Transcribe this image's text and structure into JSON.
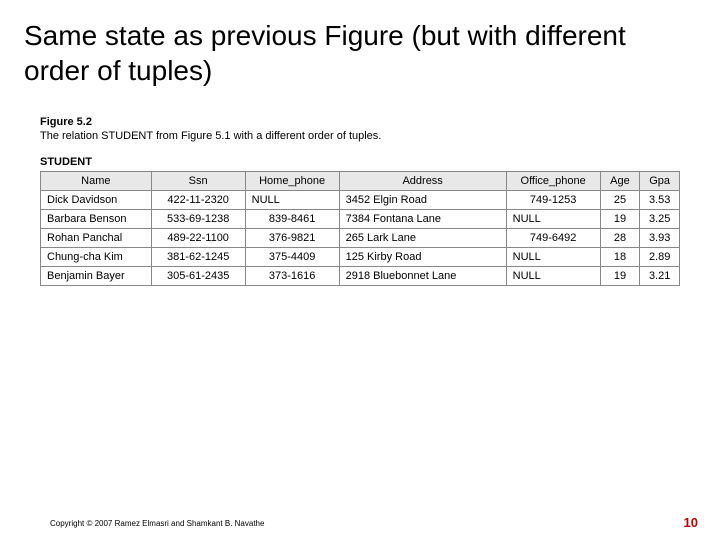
{
  "title": "Same state as previous Figure (but with different order of tuples)",
  "figure": {
    "label": "Figure 5.2",
    "caption": "The relation STUDENT from Figure 5.1 with a different order of tuples."
  },
  "table": {
    "title": "STUDENT",
    "columns": [
      "Name",
      "Ssn",
      "Home_phone",
      "Address",
      "Office_phone",
      "Age",
      "Gpa"
    ],
    "col_classes": [
      "c-name",
      "c-ssn",
      "c-home",
      "c-addr",
      "c-office",
      "c-age",
      "c-gpa"
    ],
    "rows": [
      [
        "Dick Davidson",
        "422-11-2320",
        "NULL",
        "3452 Elgin Road",
        "749-1253",
        "25",
        "3.53"
      ],
      [
        "Barbara Benson",
        "533-69-1238",
        "839-8461",
        "7384 Fontana Lane",
        "NULL",
        "19",
        "3.25"
      ],
      [
        "Rohan Panchal",
        "489-22-1100",
        "376-9821",
        "265 Lark Lane",
        "749-6492",
        "28",
        "3.93"
      ],
      [
        "Chung-cha Kim",
        "381-62-1245",
        "375-4409",
        "125 Kirby Road",
        "NULL",
        "18",
        "2.89"
      ],
      [
        "Benjamin Bayer",
        "305-61-2435",
        "373-1616",
        "2918 Bluebonnet Lane",
        "NULL",
        "19",
        "3.21"
      ]
    ],
    "null_left_align_cols": [
      2,
      4
    ]
  },
  "footer": {
    "copyright": "Copyright © 2007 Ramez Elmasri and Shamkant B. Navathe",
    "page_number": "10",
    "page_number_color": "#c00000"
  },
  "styling": {
    "header_bg": "#e8e8e8",
    "border_color": "#888888",
    "font_family": "Arial",
    "title_fontsize": 28,
    "table_fontsize": 11
  }
}
